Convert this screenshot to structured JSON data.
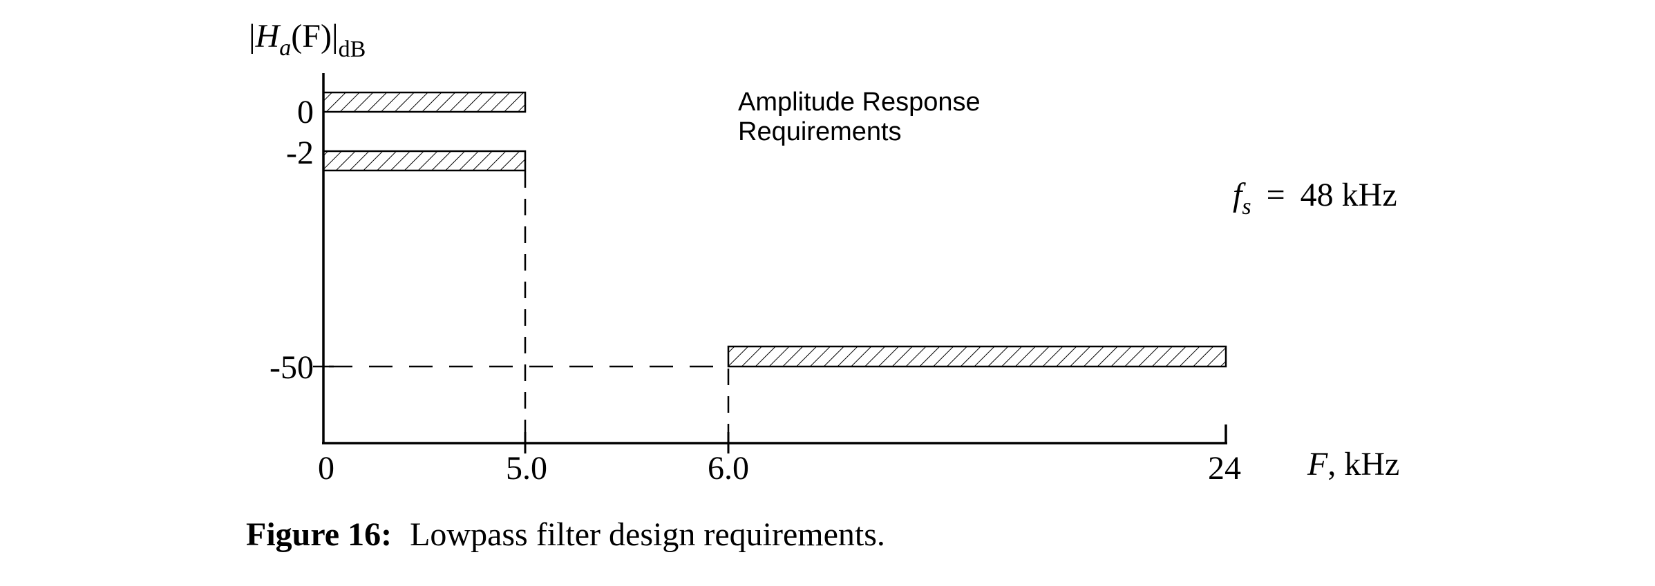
{
  "diagram": {
    "y_axis_label": {
      "open_bar": "|",
      "symbol": "H",
      "subscript": "a",
      "argument": "(F)",
      "close_bar": "|",
      "unit_subscript": "dB"
    },
    "x_axis_label": {
      "symbol": "F",
      "rest": ", kHz"
    },
    "y_ticks": [
      "0",
      "-2",
      "-50"
    ],
    "x_ticks": [
      "0",
      "5.0",
      "6.0",
      "24"
    ],
    "annotation": [
      "Amplitude Response",
      "Requirements"
    ],
    "sampling_rate": {
      "symbol": "f",
      "subscript": "s",
      "equals": "=",
      "value": "48 kHz"
    }
  },
  "chart_data": {
    "type": "filter-spec",
    "passband": {
      "edge_khz": 5.0,
      "upper_db": 0,
      "lower_db": -2
    },
    "stopband": {
      "edge_khz": 6.0,
      "end_khz": 24,
      "max_db": -50
    },
    "sampling_rate_khz": 48
  },
  "caption": {
    "label": "Figure 16:",
    "text": "Lowpass filter design requirements."
  },
  "colors": {
    "ink": "#000000",
    "background": "#ffffff"
  }
}
